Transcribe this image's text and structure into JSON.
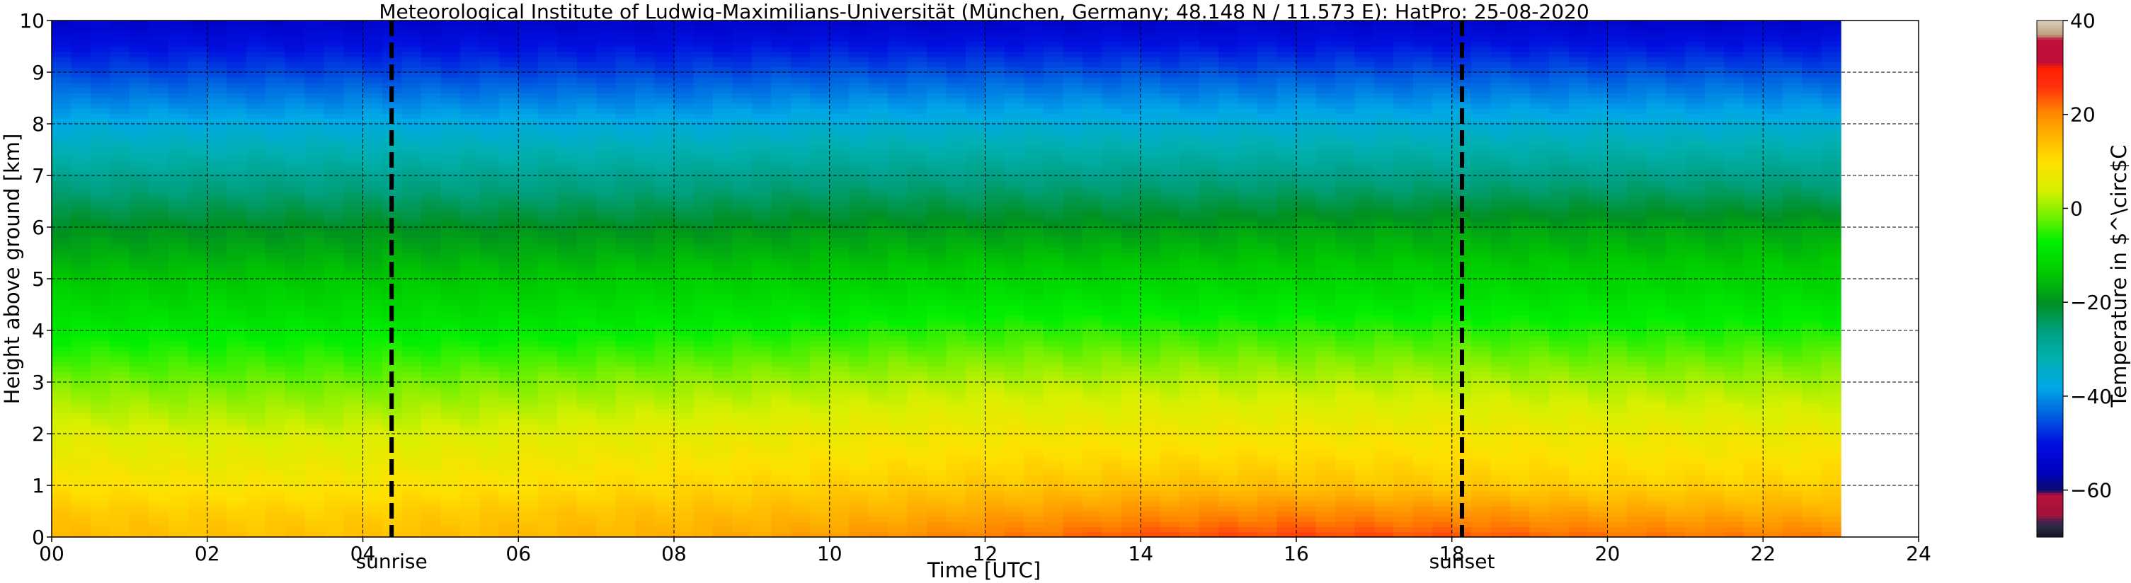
{
  "chart_data": {
    "type": "heatmap",
    "title": "Meteorological Institute of Ludwig-Maximilians-Universität (München, Germany; 48.148 N / 11.573 E):    HatPro: 25-08-2020",
    "xlabel": "Time [UTC]",
    "ylabel": "Height above ground [km]",
    "xlim": [
      0,
      24
    ],
    "ylim": [
      0,
      10
    ],
    "x_ticks": [
      0,
      2,
      4,
      6,
      8,
      10,
      12,
      14,
      16,
      18,
      20,
      22,
      24
    ],
    "x_tick_labels": [
      "00",
      "02",
      "04",
      "06",
      "08",
      "10",
      "12",
      "14",
      "16",
      "18",
      "20",
      "22",
      "24"
    ],
    "y_ticks": [
      0,
      1,
      2,
      3,
      4,
      5,
      6,
      7,
      8,
      9,
      10
    ],
    "y_tick_labels": [
      "0",
      "1",
      "2",
      "3",
      "4",
      "5",
      "6",
      "7",
      "8",
      "9",
      "10"
    ],
    "grid": true,
    "data_extent_hours": [
      0,
      23
    ],
    "events": [
      {
        "label": "sunrise",
        "x": 4.37
      },
      {
        "label": "sunset",
        "x": 18.13
      }
    ],
    "time_hours": [
      0,
      2,
      4,
      6,
      8,
      10,
      12,
      14,
      16,
      18,
      20,
      23
    ],
    "heights_km": [
      0,
      0.5,
      1,
      2,
      3,
      4,
      5,
      6,
      7,
      8,
      9,
      10
    ],
    "temperature_c": [
      [
        15,
        13,
        10,
        5,
        -1,
        -8,
        -14,
        -20,
        -28,
        -37,
        -46,
        -54
      ],
      [
        14,
        12,
        9,
        4,
        -2,
        -8,
        -14,
        -20,
        -28,
        -37,
        -46,
        -54
      ],
      [
        14,
        12,
        9,
        4,
        -2,
        -8,
        -14,
        -20,
        -28,
        -37,
        -46,
        -54
      ],
      [
        15,
        13,
        10,
        5,
        -1,
        -8,
        -14,
        -20,
        -28,
        -37,
        -46,
        -54
      ],
      [
        16,
        14,
        11,
        6,
        0,
        -7,
        -13,
        -20,
        -28,
        -37,
        -46,
        -54
      ],
      [
        18,
        15,
        12,
        7,
        1,
        -6,
        -13,
        -19,
        -27,
        -36,
        -45,
        -54
      ],
      [
        21,
        17,
        13,
        8,
        2,
        -5,
        -12,
        -19,
        -27,
        -36,
        -45,
        -54
      ],
      [
        24,
        19,
        14,
        8,
        2,
        -5,
        -12,
        -19,
        -27,
        -36,
        -45,
        -54
      ],
      [
        25,
        20,
        14,
        8,
        2,
        -5,
        -12,
        -18,
        -27,
        -36,
        -45,
        -54
      ],
      [
        24,
        19,
        13,
        8,
        2,
        -5,
        -12,
        -18,
        -27,
        -36,
        -45,
        -54
      ],
      [
        22,
        17,
        12,
        7,
        1,
        -6,
        -12,
        -18,
        -27,
        -36,
        -45,
        -54
      ],
      [
        21,
        16,
        12,
        7,
        1,
        -6,
        -12,
        -18,
        -27,
        -36,
        -45,
        -54
      ]
    ],
    "colorbar": {
      "label": "Temperature in $^\\circ$C",
      "range": [
        -70,
        40
      ],
      "ticks": [
        -60,
        -40,
        -20,
        0,
        20,
        40
      ],
      "tick_labels": [
        "−60",
        "−40",
        "−20",
        "0",
        "20",
        "40"
      ],
      "colormap": [
        {
          "v": -70,
          "c": "#12122e"
        },
        {
          "v": -68,
          "c": "#2a2a3e"
        },
        {
          "v": -66.5,
          "c": "#4a2050"
        },
        {
          "v": -65.5,
          "c": "#a0123a"
        },
        {
          "v": -61,
          "c": "#b8123a"
        },
        {
          "v": -60,
          "c": "#0a0a70"
        },
        {
          "v": -56,
          "c": "#0000c0"
        },
        {
          "v": -50,
          "c": "#0010e0"
        },
        {
          "v": -44,
          "c": "#0060e0"
        },
        {
          "v": -38,
          "c": "#00a8e8"
        },
        {
          "v": -32,
          "c": "#00b0b0"
        },
        {
          "v": -26,
          "c": "#00a080"
        },
        {
          "v": -20,
          "c": "#009020"
        },
        {
          "v": -14,
          "c": "#00c800"
        },
        {
          "v": -7,
          "c": "#00f000"
        },
        {
          "v": -1,
          "c": "#80f000"
        },
        {
          "v": 4,
          "c": "#d8f000"
        },
        {
          "v": 10,
          "c": "#ffe000"
        },
        {
          "v": 16,
          "c": "#ffb000"
        },
        {
          "v": 21,
          "c": "#ff8000"
        },
        {
          "v": 26,
          "c": "#ff3010"
        },
        {
          "v": 30,
          "c": "#ff2000"
        },
        {
          "v": 31,
          "c": "#c0103a"
        },
        {
          "v": 36,
          "c": "#c0103a"
        },
        {
          "v": 37,
          "c": "#c0a080"
        },
        {
          "v": 40,
          "c": "#d8d0b8"
        }
      ]
    }
  }
}
